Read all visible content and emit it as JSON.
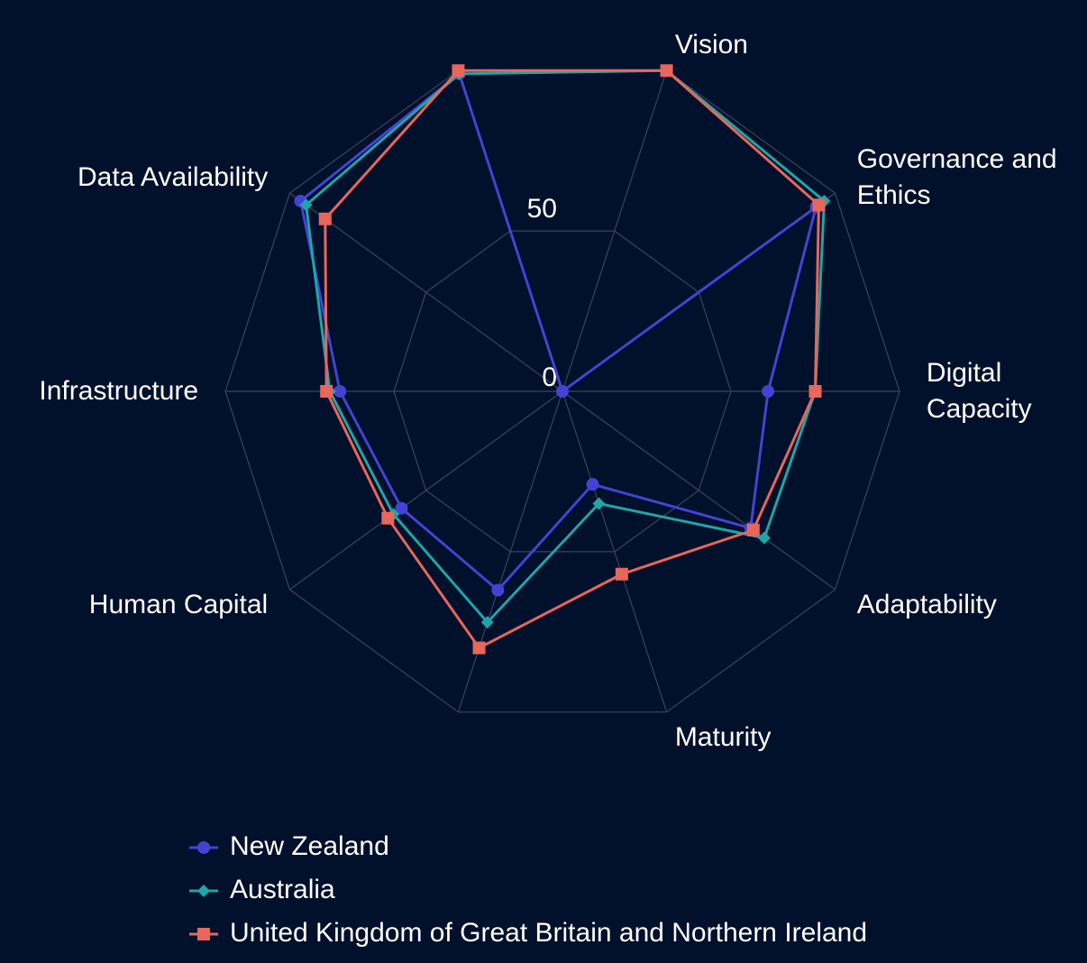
{
  "chart_data": {
    "type": "radar",
    "categories": [
      "Vision",
      "Governance and Ethics",
      "Digital Capacity",
      "Adaptability",
      "Maturity",
      null,
      "Human Capital",
      "Infrastructure",
      "Data Availability",
      null
    ],
    "ylim": [
      0,
      100
    ],
    "yticks": [
      0,
      50
    ],
    "grid": true,
    "legend": "bottom",
    "series": [
      {
        "name": "New Zealand",
        "color": "#4343d3",
        "marker": "circle",
        "values": [
          0,
          93,
          61,
          69,
          29,
          62,
          59,
          66,
          96,
          99
        ]
      },
      {
        "name": "Australia",
        "color": "#1fa5a8",
        "marker": "diamond",
        "values": [
          100,
          96,
          75,
          74,
          35,
          72,
          62,
          69,
          94,
          99
        ]
      },
      {
        "name": "United Kingdom of Great Britain and Northern Ireland",
        "color": "#e8665b",
        "marker": "square",
        "values": [
          100,
          94,
          75,
          70,
          57,
          80,
          64,
          70,
          87,
          100
        ]
      }
    ]
  }
}
